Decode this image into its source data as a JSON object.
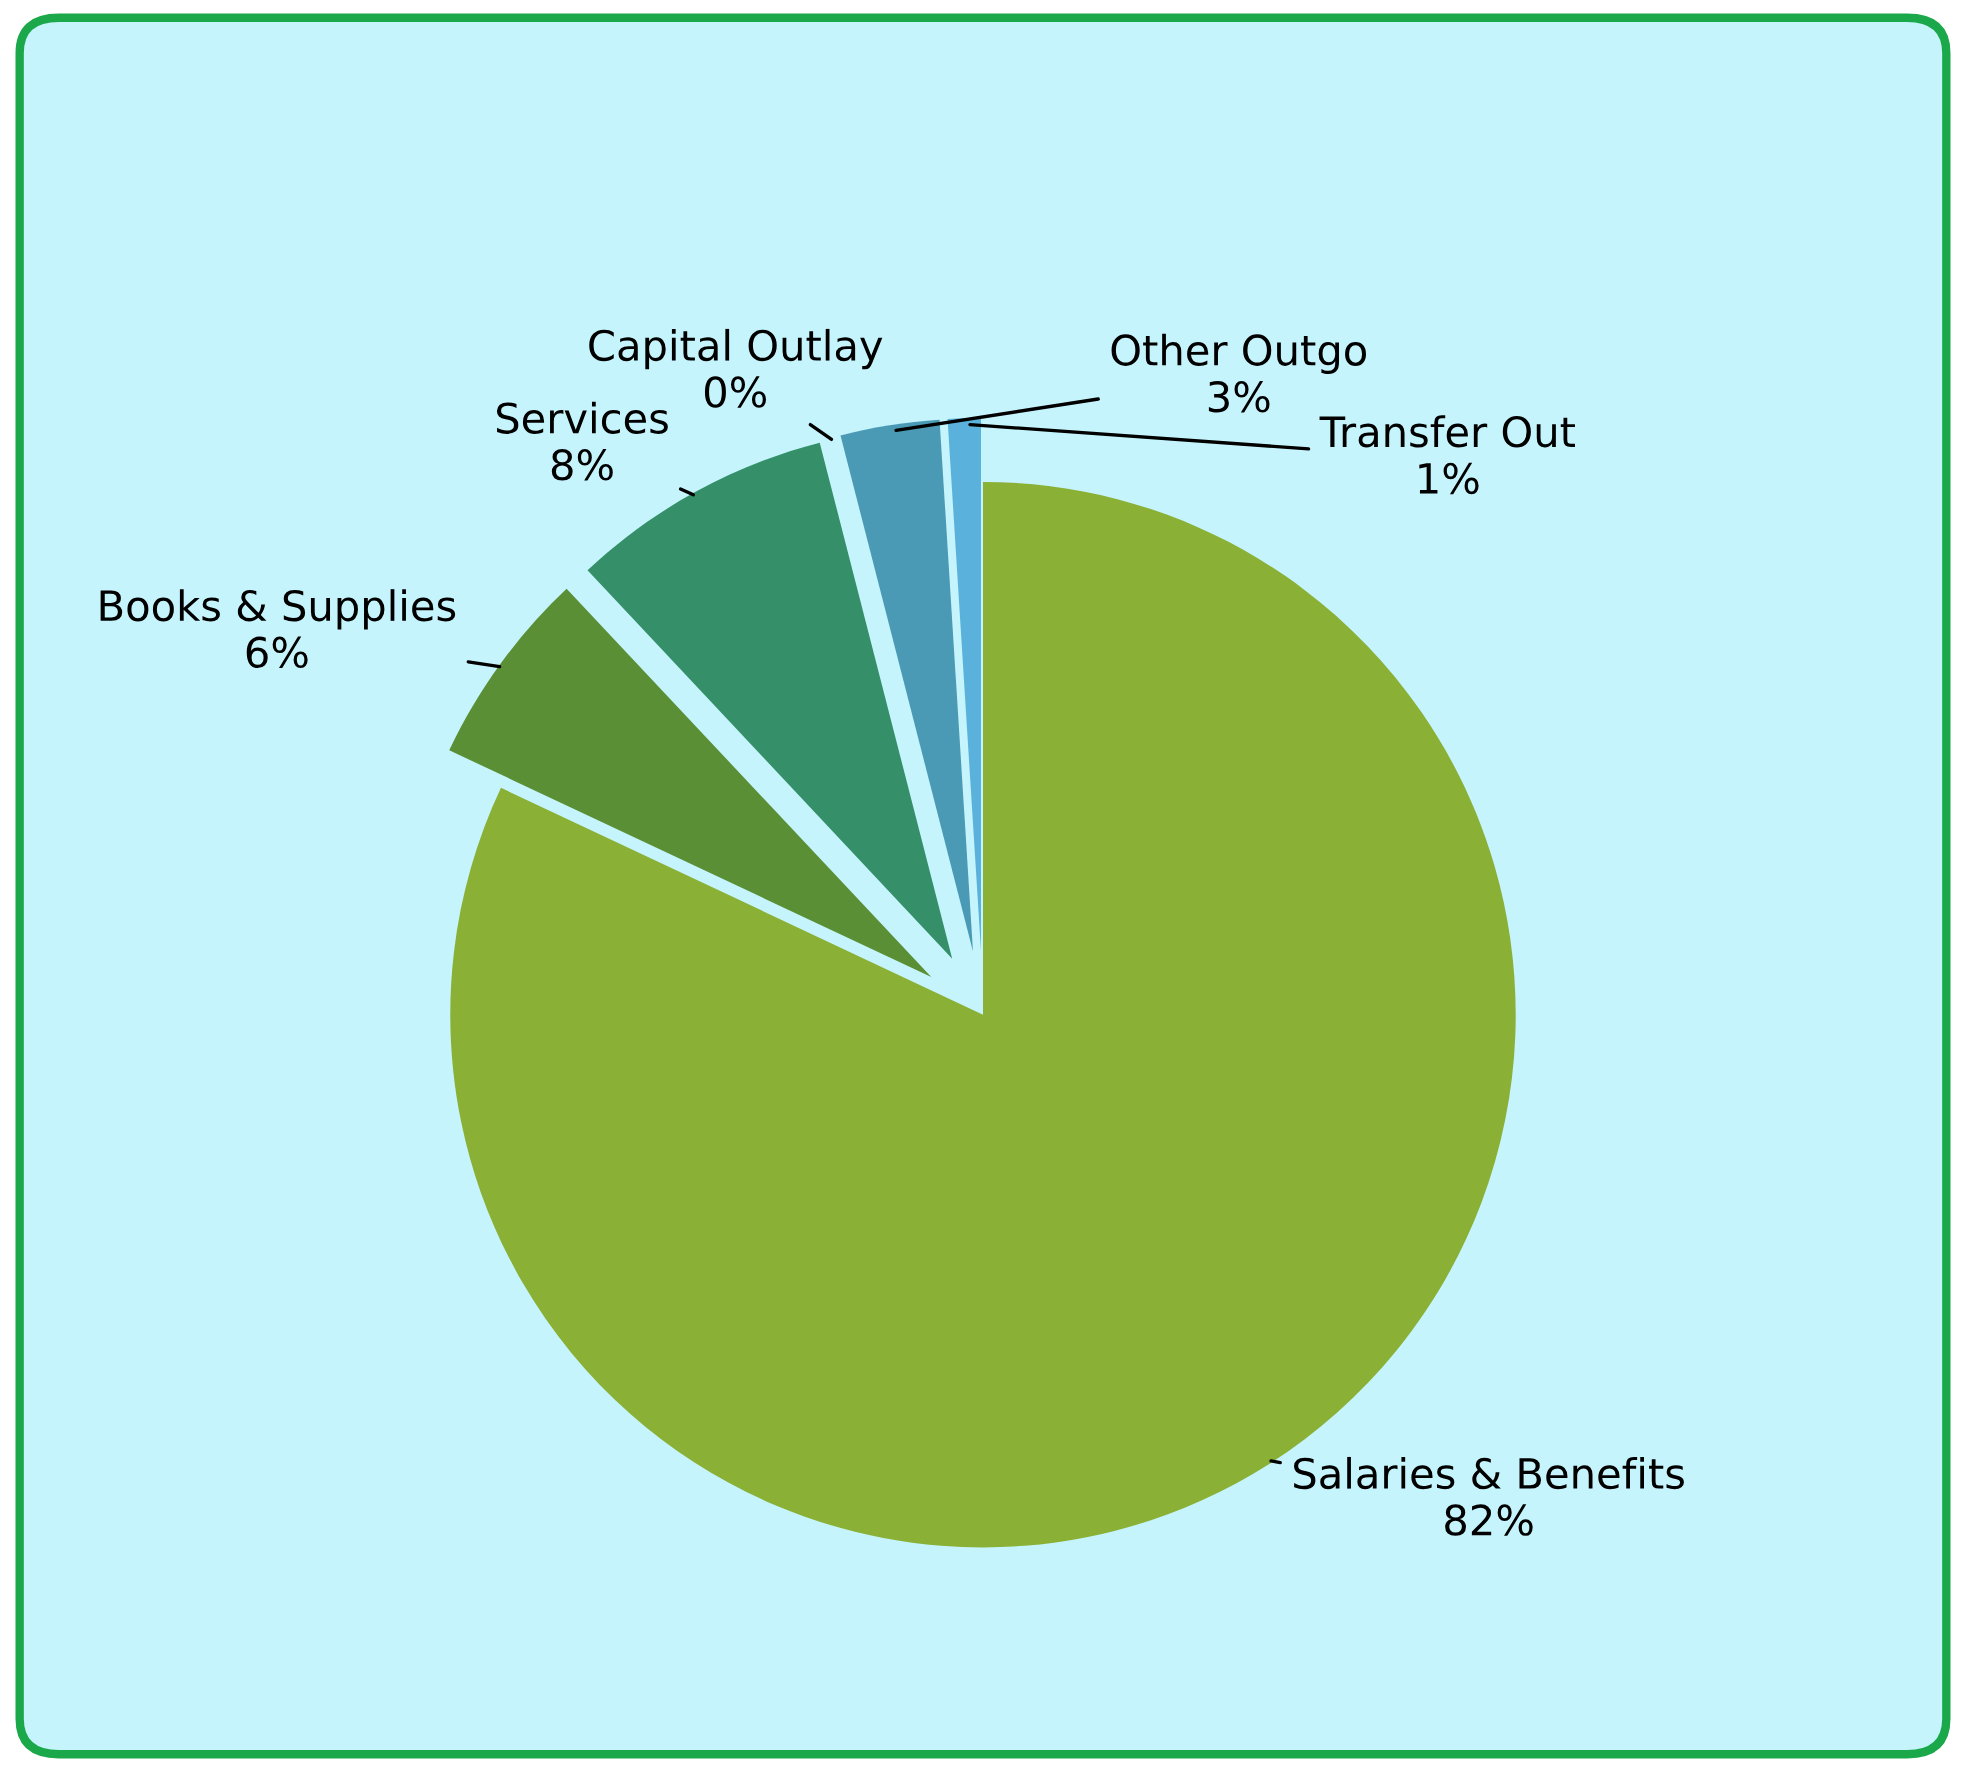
{
  "chart_data": {
    "type": "pie",
    "categories": [
      "Salaries & Benefits",
      "Books & Supplies",
      "Services",
      "Capital Outlay",
      "Other Outgo",
      "Transfer Out"
    ],
    "values": [
      82,
      6,
      8,
      0,
      3,
      1
    ],
    "value_labels": [
      "82%",
      "6%",
      "8%",
      "0%",
      "3%",
      "1%"
    ],
    "colors": [
      "#8ab035",
      "#5a8f35",
      "#35906a",
      "#2f9a86",
      "#4a9ab5",
      "#5ab2dc"
    ],
    "legend": false
  }
}
